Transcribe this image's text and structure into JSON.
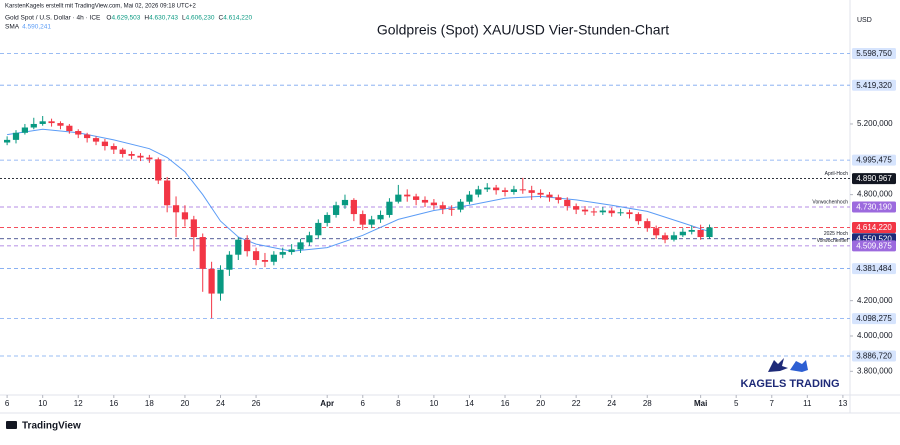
{
  "credit": "KarstenKagels erstellt mit TradingView.com, Mai 02, 2026 09:18 UTC+2",
  "brand": "TradingView",
  "logo": "KAGELS TRADING",
  "chart_data": {
    "type": "candlestick",
    "title": "Goldpreis (Spot) XAU/USD Vier-Stunden-Chart",
    "currency": "USD",
    "header": {
      "symbol": "Gold Spot / U.S. Dollar · 4h · ICE",
      "fields": [
        {
          "key": "O",
          "value": 4629.503,
          "label": "4.629,503"
        },
        {
          "key": "H",
          "value": 4630.743,
          "label": "4.630,743"
        },
        {
          "key": "L",
          "value": 4606.23,
          "label": "4.606,230"
        },
        {
          "key": "C",
          "value": 4614.22,
          "label": "4.614,220"
        }
      ]
    },
    "up_color": "#089981",
    "down_color": "#f23645",
    "xlim": [
      -0.4,
      47.4
    ],
    "ylim": [
      3666,
      5845
    ],
    "grid": false,
    "xticks": [
      {
        "value": 0,
        "label": "6"
      },
      {
        "value": 2,
        "label": "10"
      },
      {
        "value": 4,
        "label": "12"
      },
      {
        "value": 6,
        "label": "16"
      },
      {
        "value": 8,
        "label": "18"
      },
      {
        "value": 10,
        "label": "20"
      },
      {
        "value": 12,
        "label": "24"
      },
      {
        "value": 14,
        "label": "26"
      },
      {
        "value": 18,
        "label": "Apr"
      },
      {
        "value": 20,
        "label": "6"
      },
      {
        "value": 22,
        "label": "8"
      },
      {
        "value": 24,
        "label": "10"
      },
      {
        "value": 26,
        "label": "14"
      },
      {
        "value": 28,
        "label": "16"
      },
      {
        "value": 30,
        "label": "20"
      },
      {
        "value": 32,
        "label": "22"
      },
      {
        "value": 34,
        "label": "24"
      },
      {
        "value": 36,
        "label": "28"
      },
      {
        "value": 39,
        "label": "Mai"
      },
      {
        "value": 41,
        "label": "5"
      },
      {
        "value": 43,
        "label": "7"
      },
      {
        "value": 45,
        "label": "11"
      },
      {
        "value": 47,
        "label": "13"
      }
    ],
    "yticks": [
      {
        "value": 5200,
        "label": "5.200,000"
      },
      {
        "value": 4800,
        "label": "4.800,000"
      },
      {
        "value": 4200,
        "label": "4.200,000"
      },
      {
        "value": 4000,
        "label": "4.000,000"
      },
      {
        "value": 3800,
        "label": "3.800,000"
      }
    ],
    "candles": [
      [
        0,
        5095,
        5130,
        5080,
        5110
      ],
      [
        0.5,
        5110,
        5165,
        5090,
        5150
      ],
      [
        1,
        5150,
        5200,
        5140,
        5180
      ],
      [
        1.5,
        5180,
        5235,
        5170,
        5200
      ],
      [
        2,
        5200,
        5245,
        5190,
        5215
      ],
      [
        2.5,
        5215,
        5230,
        5185,
        5205
      ],
      [
        3,
        5205,
        5215,
        5170,
        5190
      ],
      [
        3.5,
        5190,
        5200,
        5145,
        5160
      ],
      [
        4,
        5160,
        5170,
        5120,
        5140
      ],
      [
        4.5,
        5140,
        5150,
        5095,
        5120
      ],
      [
        5,
        5120,
        5130,
        5080,
        5100
      ],
      [
        5.5,
        5100,
        5115,
        5050,
        5075
      ],
      [
        6,
        5075,
        5090,
        5030,
        5055
      ],
      [
        6.5,
        5055,
        5065,
        5010,
        5030
      ],
      [
        7,
        5030,
        5045,
        5000,
        5020
      ],
      [
        7.5,
        5020,
        5035,
        4990,
        5010
      ],
      [
        8,
        5010,
        5025,
        4980,
        5000
      ],
      [
        8.5,
        5000,
        5010,
        4860,
        4880
      ],
      [
        9,
        4880,
        4900,
        4700,
        4740
      ],
      [
        9.5,
        4740,
        4790,
        4560,
        4700
      ],
      [
        10,
        4700,
        4740,
        4620,
        4660
      ],
      [
        10.5,
        4660,
        4680,
        4480,
        4560
      ],
      [
        11,
        4560,
        4580,
        4250,
        4380
      ],
      [
        11.5,
        4380,
        4420,
        4100,
        4240
      ],
      [
        12,
        4240,
        4400,
        4200,
        4375
      ],
      [
        12.5,
        4375,
        4480,
        4340,
        4460
      ],
      [
        13,
        4460,
        4560,
        4430,
        4545
      ],
      [
        13.5,
        4545,
        4570,
        4450,
        4480
      ],
      [
        14,
        4480,
        4500,
        4400,
        4430
      ],
      [
        14.5,
        4430,
        4470,
        4390,
        4420
      ],
      [
        15,
        4420,
        4480,
        4400,
        4460
      ],
      [
        15.5,
        4460,
        4500,
        4440,
        4475
      ],
      [
        16,
        4475,
        4520,
        4460,
        4490
      ],
      [
        16.5,
        4490,
        4550,
        4470,
        4530
      ],
      [
        17,
        4530,
        4590,
        4510,
        4570
      ],
      [
        17.5,
        4570,
        4660,
        4555,
        4640
      ],
      [
        18,
        4640,
        4700,
        4620,
        4685
      ],
      [
        18.5,
        4685,
        4760,
        4670,
        4740
      ],
      [
        19,
        4740,
        4800,
        4720,
        4770
      ],
      [
        19.5,
        4770,
        4780,
        4650,
        4690
      ],
      [
        20,
        4690,
        4710,
        4600,
        4630
      ],
      [
        20.5,
        4630,
        4680,
        4610,
        4660
      ],
      [
        21,
        4660,
        4710,
        4640,
        4685
      ],
      [
        21.5,
        4685,
        4780,
        4670,
        4760
      ],
      [
        22,
        4760,
        4855,
        4750,
        4800
      ],
      [
        22.5,
        4800,
        4830,
        4760,
        4790
      ],
      [
        23,
        4790,
        4805,
        4740,
        4770
      ],
      [
        23.5,
        4770,
        4790,
        4730,
        4755
      ],
      [
        24,
        4755,
        4775,
        4715,
        4740
      ],
      [
        24.5,
        4740,
        4760,
        4690,
        4720
      ],
      [
        25,
        4720,
        4740,
        4680,
        4715
      ],
      [
        25.5,
        4715,
        4775,
        4700,
        4760
      ],
      [
        26,
        4760,
        4820,
        4745,
        4800
      ],
      [
        26.5,
        4800,
        4850,
        4785,
        4830
      ],
      [
        27,
        4830,
        4865,
        4815,
        4840
      ],
      [
        27.5,
        4840,
        4855,
        4800,
        4825
      ],
      [
        28,
        4825,
        4840,
        4790,
        4815
      ],
      [
        28.5,
        4815,
        4850,
        4800,
        4830
      ],
      [
        29,
        4830,
        4895,
        4805,
        4825
      ],
      [
        29.5,
        4825,
        4850,
        4770,
        4810
      ],
      [
        30,
        4810,
        4830,
        4780,
        4800
      ],
      [
        30.5,
        4800,
        4815,
        4760,
        4785
      ],
      [
        31,
        4785,
        4800,
        4750,
        4770
      ],
      [
        31.5,
        4770,
        4785,
        4710,
        4735
      ],
      [
        32,
        4735,
        4750,
        4690,
        4715
      ],
      [
        32.5,
        4715,
        4735,
        4685,
        4705
      ],
      [
        33,
        4705,
        4725,
        4680,
        4700
      ],
      [
        33.5,
        4700,
        4730,
        4685,
        4710
      ],
      [
        34,
        4710,
        4725,
        4675,
        4695
      ],
      [
        34.5,
        4695,
        4720,
        4680,
        4700
      ],
      [
        35,
        4700,
        4715,
        4665,
        4690
      ],
      [
        35.5,
        4690,
        4700,
        4630,
        4650
      ],
      [
        36,
        4650,
        4665,
        4590,
        4610
      ],
      [
        36.5,
        4610,
        4625,
        4550,
        4570
      ],
      [
        37,
        4570,
        4585,
        4525,
        4545
      ],
      [
        37.5,
        4545,
        4590,
        4535,
        4570
      ],
      [
        38,
        4570,
        4610,
        4560,
        4590
      ],
      [
        38.5,
        4590,
        4625,
        4575,
        4600
      ],
      [
        39,
        4600,
        4630,
        4545,
        4560
      ],
      [
        39.5,
        4560,
        4630.743,
        4550,
        4614.22
      ]
    ],
    "sma": {
      "name": "SMA",
      "color": "#5b9cf6",
      "last": {
        "value": 4590.241,
        "label": "4.590,241"
      },
      "x": [
        0,
        2,
        4,
        6,
        8,
        9,
        10,
        11,
        12,
        13,
        14,
        16,
        18,
        20,
        22,
        24,
        26,
        28,
        30,
        32,
        34,
        36,
        38,
        39.5
      ],
      "values": [
        5140,
        5170,
        5150,
        5110,
        5060,
        5010,
        4930,
        4800,
        4650,
        4560,
        4520,
        4480,
        4500,
        4570,
        4660,
        4710,
        4740,
        4780,
        4790,
        4770,
        4740,
        4705,
        4640,
        4590.241
      ]
    },
    "levels": [
      {
        "value": 5598.75,
        "label": "5.598,750",
        "color": "#7aa6f0"
      },
      {
        "value": 5419.32,
        "label": "5.419,320",
        "color": "#7aa6f0"
      },
      {
        "value": 4995.475,
        "label": "4.995,475",
        "color": "#7aa6f0"
      },
      {
        "value": 4890.967,
        "label": "4.890,967",
        "color": "#131722",
        "note": "April-Hoch"
      },
      {
        "value": 4730.19,
        "label": "4.730,190",
        "color": "#9c6ade",
        "note": "Vorwochenhoch"
      },
      {
        "value": 4614.22,
        "label": "4.614,220",
        "color": "#f23645"
      },
      {
        "value": 4550.52,
        "label": "4.550,520",
        "color": "#1e2a78",
        "note": "2025 Hoch"
      },
      {
        "value": 4509.875,
        "label": "4.509,875",
        "color": "#9c6ade",
        "note": "Vorwochentief"
      },
      {
        "value": 4381.484,
        "label": "4.381,484",
        "color": "#7aa6f0"
      },
      {
        "value": 4098.275,
        "label": "4.098,275",
        "color": "#7aa6f0"
      },
      {
        "value": 3886.72,
        "label": "3.886,720",
        "color": "#7aa6f0"
      }
    ]
  }
}
